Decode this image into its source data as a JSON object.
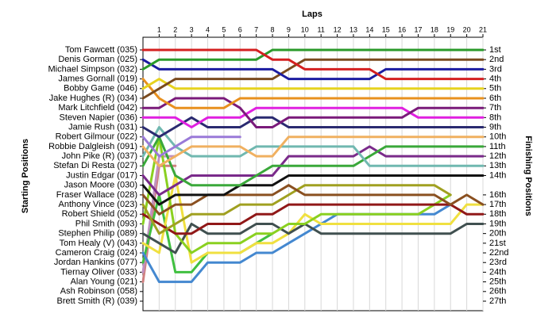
{
  "chart_data": {
    "type": "line",
    "title": "Laps",
    "ylabel": "Starting Positions",
    "y2label": "Finishing Positions",
    "x": [
      0,
      1,
      2,
      3,
      4,
      5,
      6,
      7,
      8,
      9,
      10,
      11,
      12,
      13,
      14,
      15,
      16,
      17,
      18,
      19,
      20,
      21
    ],
    "xlim": [
      0,
      21
    ],
    "xticks": [
      1,
      2,
      3,
      4,
      5,
      6,
      7,
      8,
      9,
      10,
      11,
      12,
      13,
      14,
      15,
      16,
      17,
      18,
      19,
      20,
      21
    ],
    "ylim": [
      1,
      27
    ],
    "y_reversed": true,
    "grid": "x",
    "yticks": [
      {
        "value": 1,
        "label": "Tom Fawcett (035)"
      },
      {
        "value": 2,
        "label": "Denis Gorman (025)"
      },
      {
        "value": 3,
        "label": "Michael Simpson (032)"
      },
      {
        "value": 4,
        "label": "James Gornall (019)"
      },
      {
        "value": 5,
        "label": "Bobby Game (046)"
      },
      {
        "value": 6,
        "label": "Jake Hughes (R) (034)"
      },
      {
        "value": 7,
        "label": "Mark Litchfield (042)"
      },
      {
        "value": 8,
        "label": "Steven Napier (036)"
      },
      {
        "value": 9,
        "label": "Jamie Rush (031)"
      },
      {
        "value": 10,
        "label": "Robert Gilmour (022)"
      },
      {
        "value": 11,
        "label": "Robbie Dalgleish (091)"
      },
      {
        "value": 12,
        "label": "John Pike (R) (037)"
      },
      {
        "value": 13,
        "label": "Stefan Di Resta (027)"
      },
      {
        "value": 14,
        "label": "Justin Edgar (017)"
      },
      {
        "value": 15,
        "label": "Jason Moore (030)"
      },
      {
        "value": 16,
        "label": "Fraser Wallace (028)"
      },
      {
        "value": 17,
        "label": "Anthony Vince (023)"
      },
      {
        "value": 18,
        "label": "Robert Shield (052)"
      },
      {
        "value": 19,
        "label": "Phil Smith (093)"
      },
      {
        "value": 20,
        "label": "Stephen Philip (089)"
      },
      {
        "value": 21,
        "label": "Tom Healy (V) (043)"
      },
      {
        "value": 22,
        "label": "Cameron Craig (024)"
      },
      {
        "value": 23,
        "label": "Jordan Hankins (077)"
      },
      {
        "value": 24,
        "label": "Tiernay Oliver (033)"
      },
      {
        "value": 25,
        "label": "Alan Young (021)"
      },
      {
        "value": 26,
        "label": "Ash Robinson (058)"
      },
      {
        "value": 27,
        "label": "Brett Smith (R) (039)"
      }
    ],
    "y2ticks": [
      {
        "value": 1,
        "label": "1st"
      },
      {
        "value": 2,
        "label": "2nd"
      },
      {
        "value": 3,
        "label": "3rd"
      },
      {
        "value": 4,
        "label": "4th"
      },
      {
        "value": 5,
        "label": "5th"
      },
      {
        "value": 6,
        "label": "6th"
      },
      {
        "value": 7,
        "label": "7th"
      },
      {
        "value": 8,
        "label": "8th"
      },
      {
        "value": 9,
        "label": "9th"
      },
      {
        "value": 10,
        "label": "10th"
      },
      {
        "value": 11,
        "label": "11th"
      },
      {
        "value": 12,
        "label": "12th"
      },
      {
        "value": 13,
        "label": "13th"
      },
      {
        "value": 14,
        "label": "14th"
      },
      {
        "value": 16,
        "label": "16th"
      },
      {
        "value": 17,
        "label": "17th"
      },
      {
        "value": 18,
        "label": "18th"
      },
      {
        "value": 19,
        "label": "19th"
      },
      {
        "value": 20,
        "label": "20th"
      },
      {
        "value": 21,
        "label": "21st"
      },
      {
        "value": 22,
        "label": "22nd"
      },
      {
        "value": 23,
        "label": "23rd"
      },
      {
        "value": 24,
        "label": "24th"
      },
      {
        "value": 25,
        "label": "25th"
      },
      {
        "value": 26,
        "label": "26th"
      },
      {
        "value": 27,
        "label": "27th"
      }
    ],
    "series": [
      {
        "color": "#d42020",
        "values": [
          1,
          1,
          1,
          1,
          1,
          1,
          1,
          1,
          2,
          2,
          3,
          3,
          3,
          3,
          3,
          4,
          4,
          4,
          4,
          4,
          4,
          4
        ]
      },
      {
        "color": "#2a9a2a",
        "values": [
          3,
          2,
          2,
          2,
          2,
          2,
          2,
          2,
          1,
          1,
          1,
          1,
          1,
          1,
          1,
          1,
          1,
          1,
          1,
          1,
          1,
          1
        ]
      },
      {
        "color": "#1c1ca0",
        "values": [
          2,
          3,
          3,
          3,
          3,
          3,
          3,
          3,
          3,
          4,
          4,
          4,
          4,
          4,
          4,
          3,
          3,
          3,
          3,
          3,
          3,
          3
        ]
      },
      {
        "color": "#7a4a1e",
        "values": [
          6,
          5,
          4,
          4,
          4,
          4,
          4,
          4,
          4,
          3,
          2,
          2,
          2,
          2,
          2,
          2,
          2,
          2,
          2,
          2,
          2,
          2
        ]
      },
      {
        "color": "#e6d21e",
        "values": [
          5,
          4,
          5,
          5,
          5,
          5,
          5,
          5,
          5,
          5,
          5,
          5,
          5,
          5,
          5,
          5,
          5,
          5,
          5,
          5,
          5,
          5
        ]
      },
      {
        "color": "#e8901e",
        "values": [
          4,
          6,
          7,
          7,
          7,
          7,
          6,
          6,
          6,
          6,
          6,
          6,
          6,
          6,
          6,
          6,
          6,
          6,
          6,
          6,
          6,
          6
        ]
      },
      {
        "color": "#7a1a7a",
        "values": [
          7,
          7,
          6,
          6,
          6,
          6,
          7,
          9,
          9,
          8,
          8,
          8,
          8,
          8,
          8,
          8,
          8,
          7,
          7,
          7,
          7,
          7
        ]
      },
      {
        "color": "#e020e0",
        "values": [
          8,
          8,
          8,
          9,
          8,
          8,
          8,
          7,
          7,
          7,
          7,
          7,
          7,
          7,
          7,
          7,
          7,
          8,
          8,
          8,
          8,
          8
        ]
      },
      {
        "color": "#2a2a70",
        "values": [
          9,
          10,
          9,
          8,
          9,
          9,
          9,
          8,
          8,
          9,
          9,
          9,
          9,
          9,
          9,
          9,
          9,
          9,
          9,
          9,
          9,
          9
        ]
      },
      {
        "color": "#9a7ad8",
        "values": [
          10,
          12,
          11,
          10,
          10,
          10,
          10,
          null,
          null,
          null,
          null,
          null,
          null,
          null,
          null,
          null,
          null,
          null,
          null,
          null,
          null,
          null
        ]
      },
      {
        "color": "#f0b060",
        "values": [
          11,
          13,
          12,
          11,
          11,
          11,
          11,
          12,
          12,
          10,
          10,
          10,
          10,
          10,
          10,
          10,
          10,
          10,
          10,
          10,
          10,
          10
        ]
      },
      {
        "color": "#70b8b0",
        "values": [
          12,
          9,
          11,
          12,
          12,
          12,
          12,
          11,
          11,
          11,
          11,
          11,
          11,
          11,
          13,
          13,
          13,
          13,
          13,
          13,
          13,
          13
        ]
      },
      {
        "color": "#3aa83a",
        "values": [
          13,
          10,
          14,
          15,
          15,
          15,
          15,
          14,
          13,
          13,
          13,
          13,
          13,
          13,
          12,
          11,
          11,
          11,
          11,
          11,
          11,
          11
        ]
      },
      {
        "color": "#7a2a8a",
        "values": [
          14,
          16,
          15,
          14,
          14,
          14,
          14,
          14,
          14,
          12,
          12,
          12,
          12,
          12,
          11,
          12,
          12,
          12,
          12,
          12,
          12,
          12
        ]
      },
      {
        "color": "#111111",
        "values": [
          15,
          17,
          16,
          16,
          16,
          16,
          15,
          15,
          15,
          14,
          14,
          14,
          14,
          14,
          14,
          14,
          14,
          14,
          14,
          14,
          14,
          14
        ]
      },
      {
        "color": "#8a5020",
        "values": [
          16,
          18,
          17,
          17,
          16,
          16,
          16,
          16,
          16,
          15,
          16,
          16,
          16,
          16,
          16,
          16,
          16,
          16,
          16,
          17,
          16,
          17
        ]
      },
      {
        "color": "#a0a020",
        "values": [
          17,
          20,
          19,
          18,
          18,
          18,
          17,
          17,
          17,
          16,
          15,
          15,
          15,
          15,
          15,
          15,
          15,
          15,
          15,
          16,
          null,
          null
        ]
      },
      {
        "color": "#901818",
        "values": [
          18,
          19,
          20,
          20,
          19,
          19,
          19,
          18,
          18,
          17,
          17,
          17,
          17,
          17,
          17,
          17,
          17,
          17,
          17,
          17,
          18,
          18
        ]
      },
      {
        "color": "#8ad020",
        "values": [
          19,
          10,
          20,
          22,
          21,
          21,
          21,
          20,
          20,
          19,
          19,
          18,
          18,
          18,
          18,
          18,
          18,
          18,
          17,
          16,
          null,
          null
        ]
      },
      {
        "color": "#405050",
        "values": [
          20,
          21,
          22,
          19,
          20,
          20,
          20,
          19,
          19,
          20,
          19,
          20,
          20,
          20,
          20,
          20,
          20,
          20,
          20,
          20,
          19,
          19
        ]
      },
      {
        "color": "#f0e040",
        "values": [
          21,
          22,
          14,
          23,
          22,
          22,
          22,
          21,
          21,
          20,
          18,
          19,
          19,
          19,
          19,
          19,
          19,
          19,
          19,
          19,
          17,
          17
        ]
      },
      {
        "color": "#4488d0",
        "values": [
          22,
          25,
          25,
          25,
          23,
          23,
          23,
          22,
          22,
          21,
          20,
          19,
          18,
          18,
          18,
          18,
          18,
          18,
          18,
          17,
          null,
          null
        ]
      },
      {
        "color": "#40c040",
        "values": [
          23,
          16,
          24,
          24,
          22,
          22,
          22,
          21,
          20,
          null,
          null,
          null,
          null,
          null,
          null,
          null,
          null,
          null,
          null,
          null,
          null,
          null
        ]
      },
      {
        "color": "#c090c0",
        "values": [
          24,
          12,
          12,
          null,
          null,
          null,
          null,
          null,
          null,
          null,
          null,
          null,
          null,
          null,
          null,
          null,
          null,
          null,
          null,
          null,
          null,
          null
        ]
      },
      {
        "color": "#d08080",
        "values": [
          25,
          13,
          13,
          null,
          null,
          null,
          null,
          null,
          null,
          null,
          null,
          null,
          null,
          null,
          null,
          null,
          null,
          null,
          null,
          null,
          null,
          null
        ]
      }
    ]
  }
}
